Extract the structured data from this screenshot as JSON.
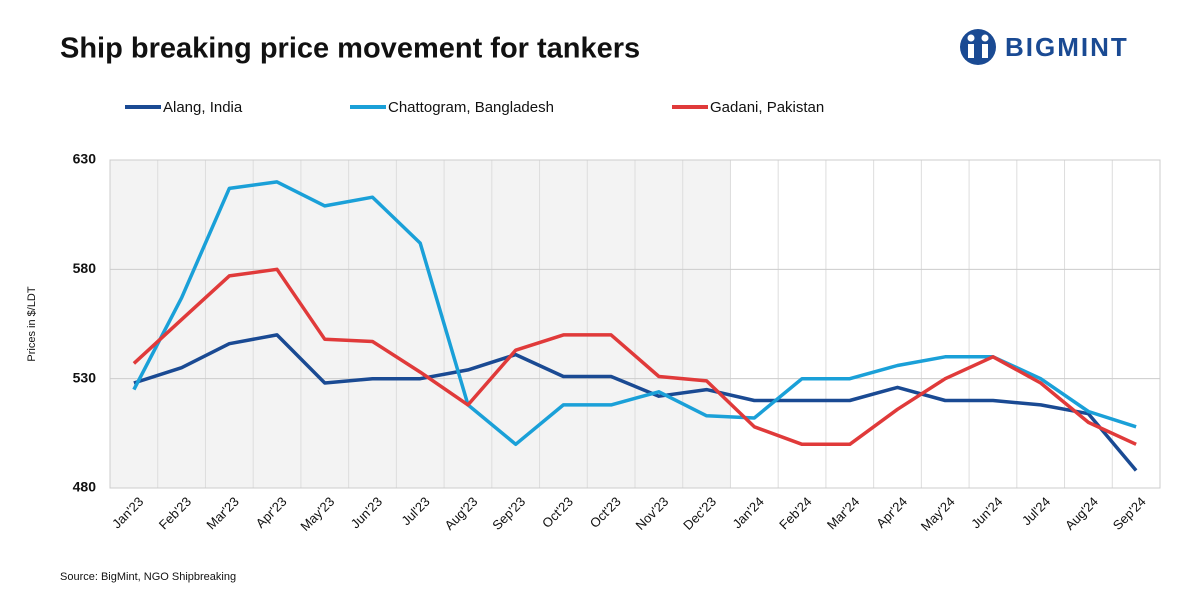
{
  "chart_data": {
    "type": "line",
    "title": "Ship breaking price movement for tankers",
    "logo": "BIGMINT",
    "y_label": "Prices in $/LDT",
    "source": "Source: BigMint, NGO Shipbreaking",
    "categories": [
      "Jan'23",
      "Feb'23",
      "Mar'23",
      "Apr'23",
      "May'23",
      "Jun'23",
      "Jul'23",
      "Aug'23",
      "Sep'23",
      "Oct'23",
      "Oct'23",
      "Nov'23",
      "Dec'23",
      "Jan'24",
      "Feb'24",
      "Mar'24",
      "Apr'24",
      "May'24",
      "Jun'24",
      "Jul'24",
      "Aug'24",
      "Sep'24"
    ],
    "series": [
      {
        "name": "Alang, India",
        "color": "#1a4a93",
        "values": [
          528,
          535,
          546,
          550,
          528,
          530,
          530,
          534,
          541,
          531,
          531,
          522,
          525,
          520,
          520,
          520,
          526,
          520,
          520,
          518,
          514,
          488
        ]
      },
      {
        "name": "Chattogram, Bangladesh",
        "color": "#1aa0d8",
        "values": [
          525,
          567,
          617,
          620,
          609,
          613,
          592,
          518,
          500,
          518,
          518,
          524,
          513,
          512,
          530,
          530,
          536,
          540,
          540,
          530,
          515,
          508
        ]
      },
      {
        "name": "Gadani, Pakistan",
        "color": "#e03a3a",
        "values": [
          537,
          557,
          577,
          580,
          548,
          547,
          533,
          518,
          543,
          550,
          550,
          531,
          529,
          508,
          500,
          500,
          516,
          530,
          540,
          528,
          510,
          500
        ]
      }
    ],
    "ylim": [
      480,
      630
    ],
    "yticks": [
      480,
      530,
      580,
      630
    ],
    "grid": true
  }
}
